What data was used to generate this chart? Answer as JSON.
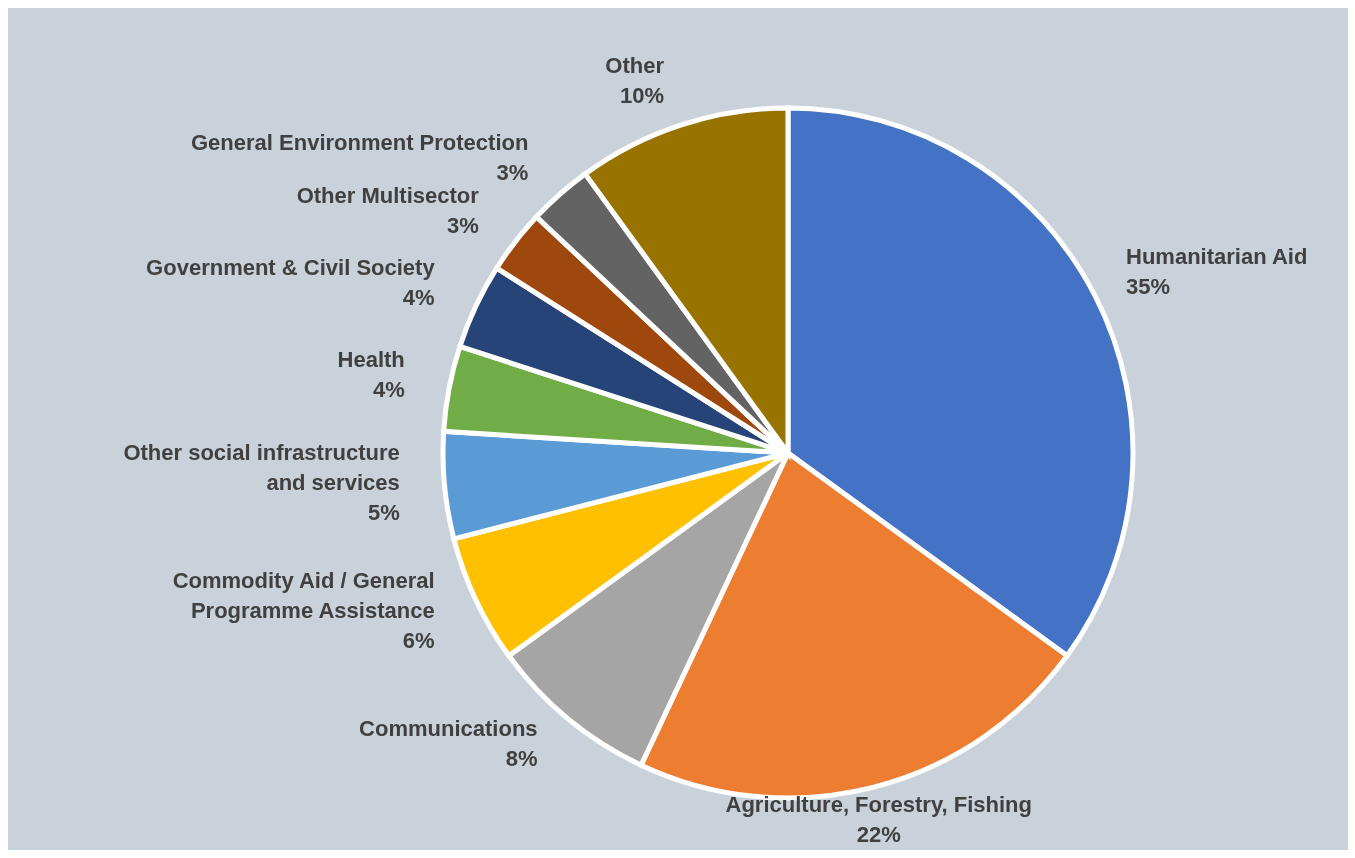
{
  "chart_data": {
    "type": "pie",
    "categories": [
      "Humanitarian Aid",
      "Agriculture, Forestry, Fishing",
      "Communications",
      "Commodity Aid / General Programme Assistance",
      "Other social infrastructure and services",
      "Health",
      "Government & Civil Society",
      "Other Multisector",
      "General Environment Protection",
      "Other"
    ],
    "values": [
      35,
      22,
      8,
      6,
      5,
      4,
      4,
      3,
      3,
      10
    ],
    "value_labels": [
      "35%",
      "22%",
      "8%",
      "6%",
      "5%",
      "4%",
      "4%",
      "3%",
      "3%",
      "10%"
    ],
    "colors": [
      "#4472c4",
      "#ed7d31",
      "#a5a5a5",
      "#ffc000",
      "#5b9bd5",
      "#70ad47",
      "#264478",
      "#9e480e",
      "#636363",
      "#997300"
    ],
    "legend": false
  }
}
